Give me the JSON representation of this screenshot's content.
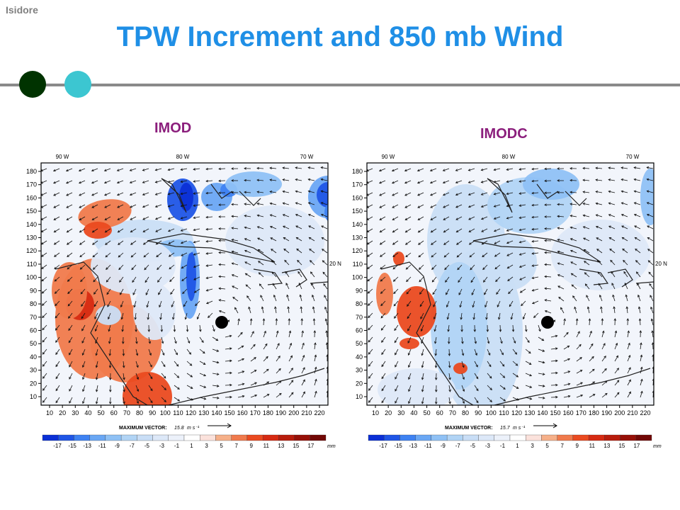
{
  "corner_label": "Isidore",
  "title": "TPW Increment and 850 mb Wind",
  "colors": {
    "title": "#1f8fe6",
    "panel_label": "#8b1e7c",
    "dot1": "#003300",
    "dot2": "#3cc6d1"
  },
  "chart_data": [
    {
      "type": "heatmap",
      "label": "IMOD",
      "x_ticks": [
        "10",
        "20",
        "30",
        "40",
        "50",
        "60",
        "70",
        "80",
        "90",
        "100",
        "110",
        "120",
        "130",
        "140",
        "150",
        "160",
        "170",
        "180",
        "190",
        "200",
        "210",
        "220"
      ],
      "y_ticks": [
        "10",
        "20",
        "30",
        "40",
        "50",
        "60",
        "70",
        "80",
        "90",
        "100",
        "110",
        "120",
        "130",
        "140",
        "150",
        "160",
        "170",
        "180"
      ],
      "lon_labels": [
        "90 W",
        "80 W",
        "70 W"
      ],
      "lat_label": "20 N",
      "max_vector_label": "MAXIMUM VECTOR:",
      "max_vector_value": "15.8",
      "max_vector_unit": "m s⁻¹",
      "colorbar_ticks": [
        "-17",
        "-15",
        "-13",
        "-11",
        "-9",
        "-7",
        "-5",
        "-3",
        "-1",
        "1",
        "3",
        "5",
        "7",
        "9",
        "11",
        "13",
        "15",
        "17"
      ],
      "colorbar_unit": "mm"
    },
    {
      "type": "heatmap",
      "label": "IMODC",
      "x_ticks": [
        "10",
        "20",
        "30",
        "40",
        "50",
        "60",
        "70",
        "80",
        "90",
        "100",
        "110",
        "120",
        "130",
        "140",
        "150",
        "160",
        "170",
        "180",
        "190",
        "200",
        "210",
        "220"
      ],
      "y_ticks": [
        "10",
        "20",
        "30",
        "40",
        "50",
        "60",
        "70",
        "80",
        "90",
        "100",
        "110",
        "120",
        "130",
        "140",
        "150",
        "160",
        "170",
        "180"
      ],
      "lon_labels": [
        "90 W",
        "80 W",
        "70 W"
      ],
      "lat_label": "20 N",
      "max_vector_label": "MAXIMUM VECTOR:",
      "max_vector_value": "15.7",
      "max_vector_unit": "m s⁻¹",
      "colorbar_ticks": [
        "-17",
        "-15",
        "-13",
        "-11",
        "-9",
        "-7",
        "-5",
        "-3",
        "-1",
        "1",
        "3",
        "5",
        "7",
        "9",
        "11",
        "13",
        "15",
        "17"
      ],
      "colorbar_unit": "mm"
    }
  ],
  "colorbar_colors": [
    "#0b2fd6",
    "#1f55e6",
    "#3e82f2",
    "#6aa7f4",
    "#8fc1f5",
    "#b1d4f5",
    "#c9def6",
    "#dde8f8",
    "#ecf1fa",
    "#ffffff",
    "#fbe2dc",
    "#f6b089",
    "#f07a4c",
    "#ea4a20",
    "#d62a12",
    "#b81c0c",
    "#961008",
    "#720806"
  ]
}
